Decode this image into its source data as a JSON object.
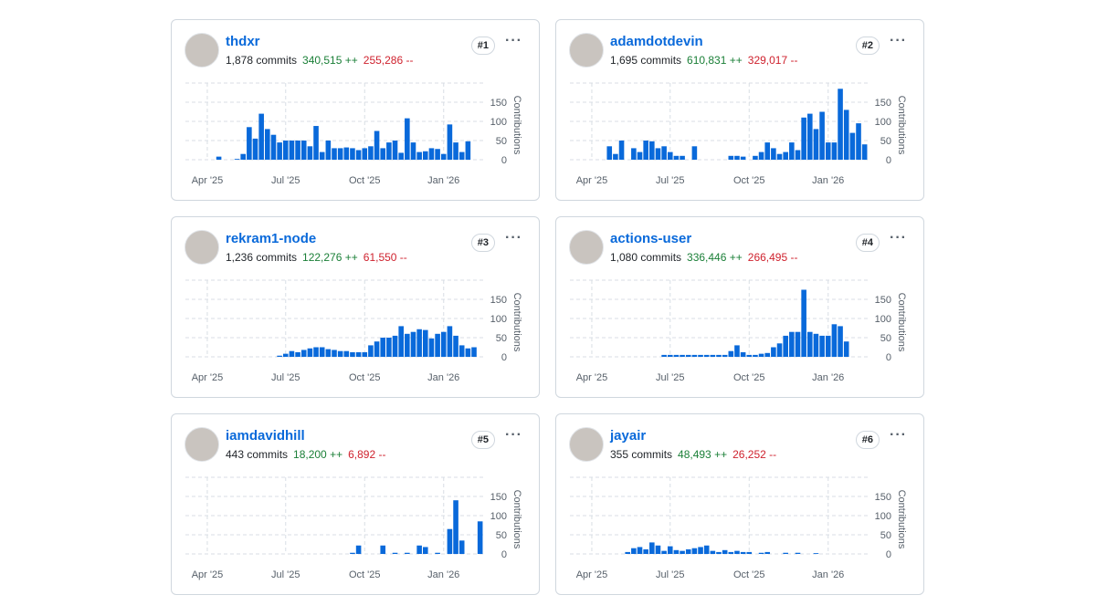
{
  "cards": [
    {
      "name": "thdxr",
      "commits": "1,878 commits",
      "additions": "340,515 ++",
      "deletions": "255,286 --",
      "rank": "#1",
      "chart": {
        "type": "bar",
        "y_label": "Contributions",
        "color": "#0969da",
        "xlim": [
          0,
          49
        ],
        "ylim": [
          0,
          200
        ],
        "yticks": [
          0,
          50,
          100,
          150
        ],
        "xticks": [
          {
            "value": 3.6,
            "label": "Apr '25"
          },
          {
            "value": 16.5,
            "label": "Jul '25"
          },
          {
            "value": 29.5,
            "label": "Oct '25"
          },
          {
            "value": 42.5,
            "label": "Jan '26"
          }
        ],
        "values": [
          0,
          0,
          0,
          0,
          0,
          8,
          0,
          0,
          2,
          15,
          85,
          55,
          120,
          80,
          65,
          45,
          50,
          50,
          50,
          50,
          35,
          88,
          20,
          50,
          30,
          30,
          32,
          30,
          25,
          30,
          35,
          75,
          30,
          45,
          50,
          18,
          108,
          45,
          20,
          22,
          30,
          28,
          15,
          92,
          45,
          20,
          48,
          0,
          0
        ]
      }
    },
    {
      "name": "adamdotdevin",
      "commits": "1,695 commits",
      "additions": "610,831 ++",
      "deletions": "329,017 --",
      "rank": "#2",
      "chart": {
        "type": "bar",
        "y_label": "Contributions",
        "color": "#0969da",
        "xlim": [
          0,
          49
        ],
        "ylim": [
          0,
          200
        ],
        "yticks": [
          0,
          50,
          100,
          150
        ],
        "xticks": [
          {
            "value": 3.6,
            "label": "Apr '25"
          },
          {
            "value": 16.5,
            "label": "Jul '25"
          },
          {
            "value": 29.5,
            "label": "Oct '25"
          },
          {
            "value": 42.5,
            "label": "Jan '26"
          }
        ],
        "values": [
          0,
          0,
          0,
          0,
          0,
          0,
          35,
          15,
          50,
          0,
          30,
          20,
          50,
          48,
          30,
          35,
          20,
          10,
          10,
          0,
          35,
          0,
          0,
          0,
          0,
          0,
          10,
          10,
          8,
          0,
          10,
          20,
          45,
          30,
          15,
          20,
          45,
          25,
          110,
          120,
          80,
          125,
          45,
          45,
          185,
          130,
          70,
          95,
          40
        ]
      }
    },
    {
      "name": "rekram1-node",
      "commits": "1,236 commits",
      "additions": "122,276 ++",
      "deletions": "61,550 --",
      "rank": "#3",
      "chart": {
        "type": "bar",
        "y_label": "Contributions",
        "color": "#0969da",
        "xlim": [
          0,
          49
        ],
        "ylim": [
          0,
          200
        ],
        "yticks": [
          0,
          50,
          100,
          150
        ],
        "xticks": [
          {
            "value": 3.6,
            "label": "Apr '25"
          },
          {
            "value": 16.5,
            "label": "Jul '25"
          },
          {
            "value": 29.5,
            "label": "Oct '25"
          },
          {
            "value": 42.5,
            "label": "Jan '26"
          }
        ],
        "values": [
          0,
          0,
          0,
          0,
          0,
          0,
          0,
          0,
          0,
          0,
          0,
          0,
          0,
          0,
          0,
          3,
          8,
          15,
          12,
          18,
          22,
          25,
          25,
          20,
          18,
          15,
          15,
          12,
          12,
          12,
          30,
          40,
          50,
          50,
          55,
          80,
          60,
          65,
          72,
          70,
          48,
          60,
          65,
          80,
          55,
          30,
          22,
          25,
          0
        ]
      }
    },
    {
      "name": "actions-user",
      "commits": "1,080 commits",
      "additions": "336,446 ++",
      "deletions": "266,495 --",
      "rank": "#4",
      "chart": {
        "type": "bar",
        "y_label": "Contributions",
        "color": "#0969da",
        "xlim": [
          0,
          49
        ],
        "ylim": [
          0,
          200
        ],
        "yticks": [
          0,
          50,
          100,
          150
        ],
        "xticks": [
          {
            "value": 3.6,
            "label": "Apr '25"
          },
          {
            "value": 16.5,
            "label": "Jul '25"
          },
          {
            "value": 29.5,
            "label": "Oct '25"
          },
          {
            "value": 42.5,
            "label": "Jan '26"
          }
        ],
        "values": [
          0,
          0,
          0,
          0,
          0,
          0,
          0,
          0,
          0,
          0,
          0,
          0,
          0,
          0,
          0,
          5,
          5,
          5,
          5,
          5,
          5,
          5,
          5,
          5,
          5,
          5,
          15,
          30,
          12,
          5,
          5,
          8,
          10,
          25,
          35,
          55,
          65,
          65,
          175,
          65,
          60,
          55,
          55,
          85,
          80,
          40,
          0,
          0,
          0
        ]
      }
    },
    {
      "name": "iamdavidhill",
      "commits": "443 commits",
      "additions": "18,200 ++",
      "deletions": "6,892 --",
      "rank": "#5",
      "chart": {
        "type": "bar",
        "y_label": "Contributions",
        "color": "#0969da",
        "xlim": [
          0,
          49
        ],
        "ylim": [
          0,
          200
        ],
        "yticks": [
          0,
          50,
          100,
          150
        ],
        "xticks": [
          {
            "value": 3.6,
            "label": "Apr '25"
          },
          {
            "value": 16.5,
            "label": "Jul '25"
          },
          {
            "value": 29.5,
            "label": "Oct '25"
          },
          {
            "value": 42.5,
            "label": "Jan '26"
          }
        ],
        "values": [
          0,
          0,
          0,
          0,
          0,
          0,
          0,
          0,
          0,
          0,
          0,
          0,
          0,
          0,
          0,
          0,
          0,
          0,
          0,
          0,
          0,
          0,
          0,
          0,
          0,
          0,
          0,
          3,
          22,
          0,
          0,
          0,
          22,
          0,
          3,
          0,
          3,
          0,
          22,
          18,
          0,
          3,
          0,
          65,
          140,
          35,
          0,
          0,
          85
        ]
      }
    },
    {
      "name": "jayair",
      "commits": "355 commits",
      "additions": "48,493 ++",
      "deletions": "26,252 --",
      "rank": "#6",
      "chart": {
        "type": "bar",
        "y_label": "Contributions",
        "color": "#0969da",
        "xlim": [
          0,
          49
        ],
        "ylim": [
          0,
          200
        ],
        "yticks": [
          0,
          50,
          100,
          150
        ],
        "xticks": [
          {
            "value": 3.6,
            "label": "Apr '25"
          },
          {
            "value": 16.5,
            "label": "Jul '25"
          },
          {
            "value": 29.5,
            "label": "Oct '25"
          },
          {
            "value": 42.5,
            "label": "Jan '26"
          }
        ],
        "values": [
          0,
          0,
          0,
          0,
          0,
          0,
          0,
          0,
          0,
          5,
          15,
          18,
          12,
          30,
          22,
          8,
          20,
          10,
          8,
          12,
          15,
          18,
          22,
          8,
          5,
          10,
          5,
          8,
          5,
          5,
          0,
          3,
          5,
          0,
          0,
          3,
          0,
          3,
          0,
          0,
          2,
          0,
          0,
          0,
          0,
          0,
          0,
          0,
          0
        ]
      }
    }
  ]
}
